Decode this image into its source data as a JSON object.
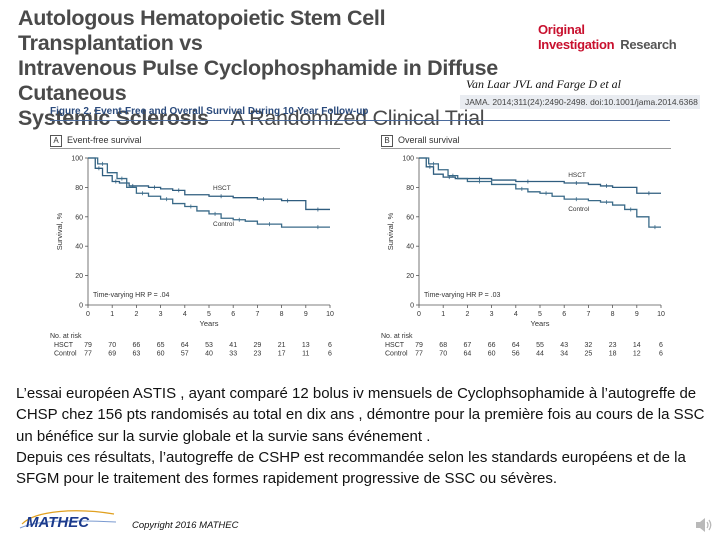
{
  "header": {
    "title_line1": "Autologous Hematopoietic Stem Cell Transplantation vs",
    "title_line2": "Intravenous Pulse Cyclophosphamide in Diffuse Cutaneous",
    "title_line3": "Systemic Sclerosis",
    "title_line3_sub": "A Randomized Clinical Trial",
    "badge_main": "Original Investigation",
    "badge_sub": "Research",
    "authors": "Van Laar JVL and Farge D et al",
    "citation": "JAMA. 2014;311(24):2490-2498. doi:10.1001/jama.2014.6368"
  },
  "figure": {
    "title": "Figure 2. Event-Free and Overall Survival During 10-Year Follow-up"
  },
  "chart_data": [
    {
      "type": "line",
      "panel": "A",
      "title": "Event-free survival",
      "xlabel": "Years",
      "ylabel": "Survival, %",
      "xlim": [
        0,
        10
      ],
      "ylim": [
        0,
        100
      ],
      "xticks": [
        "0",
        "1",
        "2",
        "3",
        "4",
        "5",
        "6",
        "7",
        "8",
        "9",
        "10"
      ],
      "yticks": [
        "0",
        "20",
        "40",
        "60",
        "80",
        "100"
      ],
      "annotation": "Time-varying HR P = .04",
      "series": [
        {
          "name": "HSCT",
          "x": [
            0,
            0.3,
            0.6,
            1,
            1.3,
            1.7,
            2,
            2.5,
            3,
            3.5,
            4,
            5,
            6,
            7,
            7.5,
            8,
            8.5,
            9,
            10
          ],
          "y": [
            100,
            93,
            88,
            84,
            83,
            81,
            81,
            80,
            79,
            78,
            75,
            74,
            73,
            72,
            72,
            71,
            71,
            65,
            65
          ]
        },
        {
          "name": "Control",
          "x": [
            0,
            0.4,
            0.8,
            1.2,
            1.6,
            2,
            2.5,
            3,
            3.5,
            4,
            4.5,
            5,
            5.5,
            6,
            6.5,
            7,
            8,
            9,
            10
          ],
          "y": [
            100,
            96,
            90,
            86,
            80,
            76,
            74,
            72,
            69,
            67,
            64,
            62,
            59,
            58,
            57,
            55,
            53,
            53,
            53
          ]
        }
      ],
      "at_risk": {
        "label": "No. at risk",
        "rows": [
          {
            "name": "HSCT",
            "values": [
              "79",
              "70",
              "66",
              "65",
              "64",
              "53",
              "41",
              "29",
              "21",
              "13",
              "6"
            ]
          },
          {
            "name": "Control",
            "values": [
              "77",
              "69",
              "63",
              "60",
              "57",
              "40",
              "33",
              "23",
              "17",
              "11",
              "6"
            ]
          }
        ]
      }
    },
    {
      "type": "line",
      "panel": "B",
      "title": "Overall survival",
      "xlabel": "Years",
      "ylabel": "Survival, %",
      "xlim": [
        0,
        10
      ],
      "ylim": [
        0,
        100
      ],
      "xticks": [
        "0",
        "1",
        "2",
        "3",
        "4",
        "5",
        "6",
        "7",
        "8",
        "9",
        "10"
      ],
      "yticks": [
        "0",
        "20",
        "40",
        "60",
        "80",
        "100"
      ],
      "annotation": "Time-varying HR P = .03",
      "series": [
        {
          "name": "HSCT",
          "x": [
            0,
            0.3,
            0.6,
            1,
            1.5,
            2,
            3,
            4,
            5,
            6,
            7,
            7.5,
            8,
            9,
            10
          ],
          "y": [
            100,
            94,
            89,
            87,
            86,
            86,
            85,
            84,
            84,
            83,
            82,
            81,
            80,
            76,
            76
          ]
        },
        {
          "name": "Control",
          "x": [
            0,
            0.4,
            0.8,
            1.2,
            1.6,
            2,
            3,
            4,
            4.5,
            5,
            5.5,
            6,
            7,
            7.5,
            8,
            8.5,
            9,
            9.5,
            10
          ],
          "y": [
            100,
            96,
            92,
            88,
            86,
            84,
            82,
            79,
            77,
            76,
            74,
            72,
            71,
            70,
            68,
            65,
            60,
            53,
            53
          ]
        }
      ],
      "at_risk": {
        "label": "No. at risk",
        "rows": [
          {
            "name": "HSCT",
            "values": [
              "79",
              "68",
              "67",
              "66",
              "64",
              "55",
              "43",
              "32",
              "23",
              "14",
              "6"
            ]
          },
          {
            "name": "Control",
            "values": [
              "77",
              "70",
              "64",
              "60",
              "56",
              "44",
              "34",
              "25",
              "18",
              "12",
              "6"
            ]
          }
        ]
      }
    }
  ],
  "body_text": {
    "p1": "L’essai européen ASTIS , ayant comparé 12 bolus iv mensuels de Cyclophsophamide à l’autogreffe de CHSP chez 156 pts  randomisés au total en dix ans , démontre pour la première fois au cours de la SSC un bénéfice sur la survie globale et la survie sans événement .",
    "p2": "Depuis ces résultats, l’autogreffe de CSHP est recommandée selon les standards européens et de la SFGM pour le traitement des formes rapidement progressive de SSC ou sévères."
  },
  "footer": {
    "logo_text": "MATHEC",
    "copyright": "Copyright 2016 MATHEC",
    "speaker_icon": "speaker-icon"
  },
  "colors": {
    "hsct": "#2f5d7f",
    "control": "#3a6a88",
    "title": "#4a4a4a",
    "badge": "#c8102e",
    "figure_title": "#2a4a7c",
    "logo_blue": "#1b3a8c"
  }
}
